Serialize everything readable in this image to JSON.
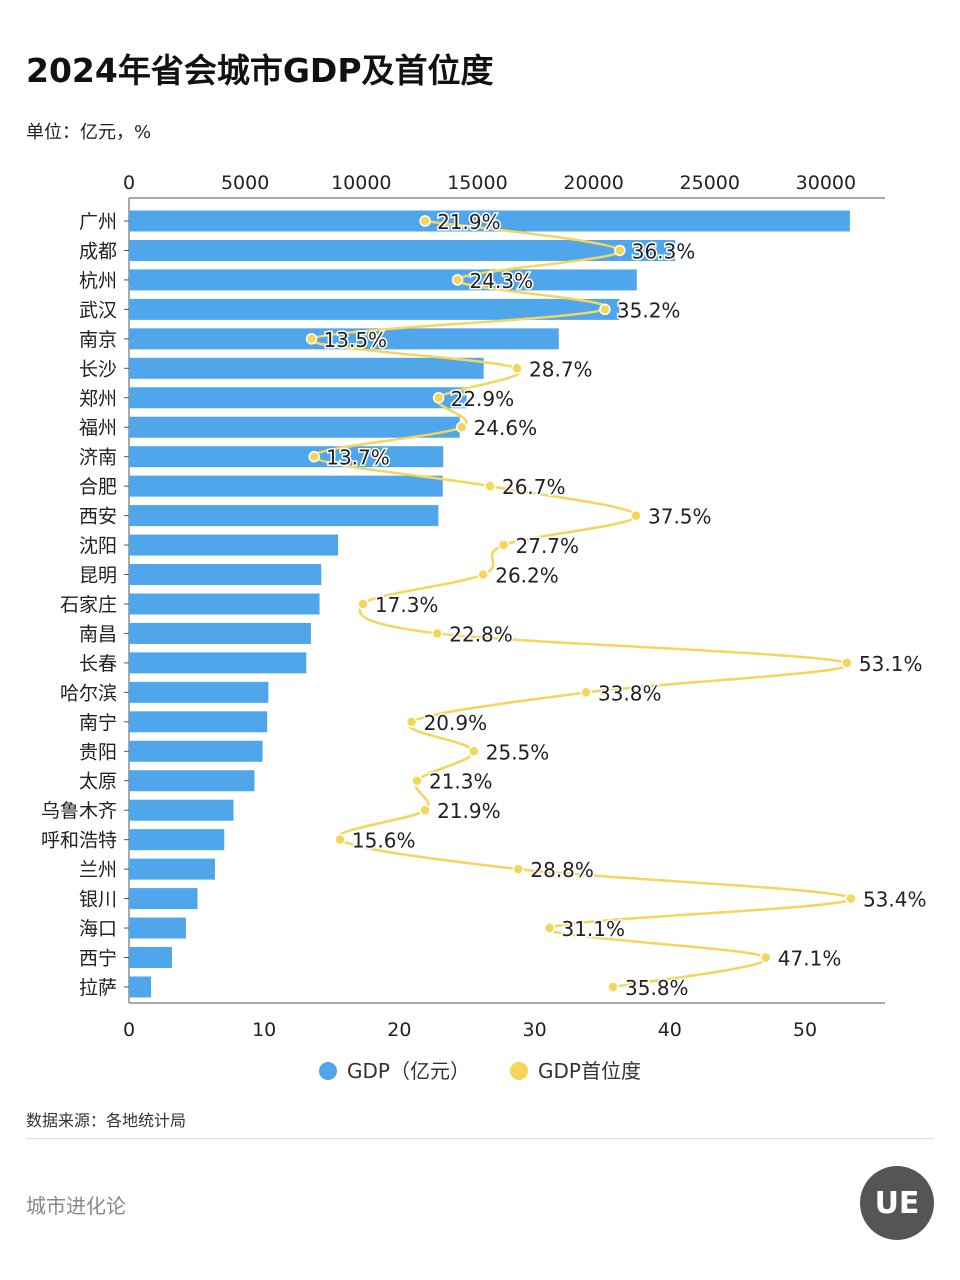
{
  "title": "2024年省会城市GDP及首位度",
  "unit": "单位：亿元，%",
  "source": "数据来源：各地统计局",
  "brand": "城市进化论",
  "logo_text": "UE",
  "colors": {
    "gdp": "#4FA6EA",
    "primacy": "#F5D55A"
  },
  "chart_data": {
    "type": "bar+line",
    "orientation": "horizontal",
    "categories": [
      "广州",
      "成都",
      "杭州",
      "武汉",
      "南京",
      "长沙",
      "郑州",
      "福州",
      "济南",
      "合肥",
      "西安",
      "沈阳",
      "昆明",
      "石家庄",
      "南昌",
      "长春",
      "哈尔滨",
      "南宁",
      "贵阳",
      "太原",
      "乌鲁木齐",
      "呼和浩特",
      "兰州",
      "银川",
      "海口",
      "西宁",
      "拉萨"
    ],
    "series": [
      {
        "name": "GDP（亿元）",
        "type": "bar",
        "axis": "top",
        "values": [
          31032,
          23511,
          21860,
          21106,
          18500,
          15268,
          14533,
          14237,
          13528,
          13507,
          13318,
          9000,
          8276,
          8203,
          7832,
          7632,
          6000,
          5950,
          5750,
          5400,
          4500,
          4100,
          3700,
          2950,
          2450,
          1850,
          950
        ]
      },
      {
        "name": "GDP首位度",
        "type": "line",
        "axis": "bottom",
        "values": [
          21.9,
          36.3,
          24.3,
          35.2,
          13.5,
          28.7,
          22.9,
          24.6,
          13.7,
          26.7,
          37.5,
          27.7,
          26.2,
          17.3,
          22.8,
          53.1,
          33.8,
          20.9,
          25.5,
          21.3,
          21.9,
          15.6,
          28.8,
          53.4,
          31.1,
          47.1,
          35.8
        ],
        "labels": [
          "21.9%",
          "36.3%",
          "24.3%",
          "35.2%",
          "13.5%",
          "28.7%",
          "22.9%",
          "24.6%",
          "13.7%",
          "26.7%",
          "37.5%",
          "27.7%",
          "26.2%",
          "17.3%",
          "22.8%",
          "53.1%",
          "33.8%",
          "20.9%",
          "25.5%",
          "21.3%",
          "21.9%",
          "15.6%",
          "28.8%",
          "53.4%",
          "31.1%",
          "47.1%",
          "35.8%"
        ]
      }
    ],
    "top_axis": {
      "range": [
        0,
        31500
      ],
      "ticks": [
        "0",
        "5000",
        "10000",
        "15000",
        "20000",
        "25000",
        "30000"
      ]
    },
    "bottom_axis": {
      "range": [
        0,
        56
      ],
      "ticks": [
        "0",
        "10",
        "20",
        "30",
        "40",
        "50"
      ]
    },
    "legend": [
      "GDP（亿元）",
      "GDP首位度"
    ],
    "legend_position": "bottom"
  }
}
